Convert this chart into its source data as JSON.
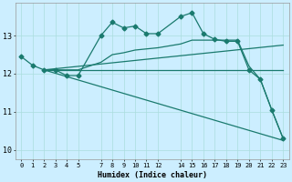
{
  "xlabel": "Humidex (Indice chaleur)",
  "bg_color": "#cceeff",
  "grid_color": "#aadddd",
  "line_color": "#1a7a6e",
  "xlim": [
    -0.5,
    23.5
  ],
  "ylim": [
    9.75,
    13.85
  ],
  "ytick_values": [
    10,
    11,
    12,
    13
  ],
  "xtick_positions": [
    0,
    1,
    2,
    3,
    4,
    5,
    7,
    8,
    9,
    10,
    11,
    12,
    14,
    15,
    16,
    17,
    18,
    19,
    20,
    21,
    22,
    23
  ],
  "xtick_labels": [
    "0",
    "1",
    "2",
    "3",
    "4",
    "5",
    "7",
    "8",
    "9",
    "10",
    "11",
    "12",
    "14",
    "15",
    "16",
    "17",
    "18",
    "19",
    "20",
    "21",
    "22",
    "23"
  ],
  "line1_x": [
    0,
    1,
    2,
    3,
    4,
    5,
    7,
    8,
    9,
    10,
    11,
    12,
    14,
    15,
    16,
    17,
    18,
    19,
    20,
    21,
    22,
    23
  ],
  "line1_y": [
    12.45,
    12.22,
    12.1,
    12.1,
    11.95,
    11.95,
    13.0,
    13.35,
    13.2,
    13.25,
    13.05,
    13.05,
    13.5,
    13.6,
    13.05,
    12.9,
    12.85,
    12.85,
    12.1,
    11.85,
    11.05,
    10.3
  ],
  "line2_x": [
    2,
    3,
    4,
    5,
    7,
    8,
    9,
    10,
    11,
    12,
    14,
    15,
    16,
    17,
    18,
    19,
    20,
    21,
    22,
    23
  ],
  "line2_y": [
    12.1,
    12.1,
    12.1,
    12.1,
    12.1,
    12.1,
    12.1,
    12.1,
    12.1,
    12.1,
    12.1,
    12.1,
    12.1,
    12.1,
    12.1,
    12.1,
    12.1,
    12.1,
    12.1,
    12.1
  ],
  "line3_x": [
    2,
    23
  ],
  "line3_y": [
    12.1,
    12.75
  ],
  "line4_x": [
    2,
    23
  ],
  "line4_y": [
    12.1,
    10.25
  ],
  "line5_x": [
    2,
    5,
    7,
    8,
    9,
    10,
    11,
    12,
    14,
    15,
    16,
    17,
    18,
    19,
    20,
    21,
    22,
    23
  ],
  "line5_y": [
    12.1,
    12.1,
    12.3,
    12.5,
    12.55,
    12.62,
    12.65,
    12.68,
    12.78,
    12.88,
    12.88,
    12.88,
    12.88,
    12.88,
    12.2,
    11.85,
    11.05,
    10.3
  ]
}
